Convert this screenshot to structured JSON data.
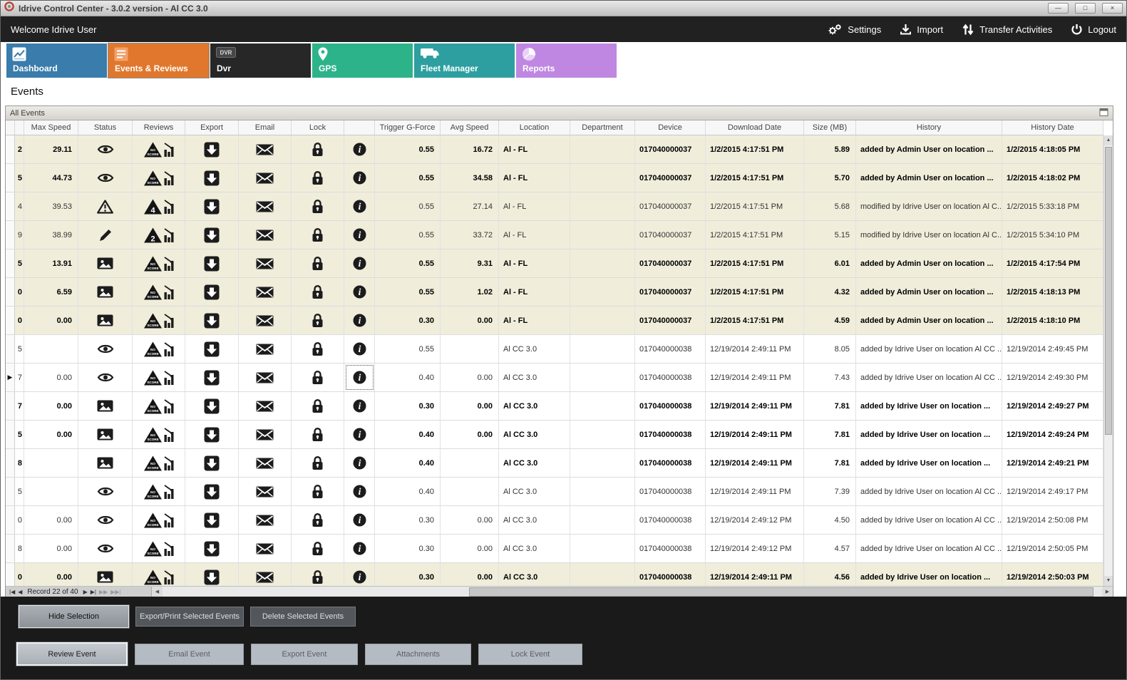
{
  "window": {
    "title": "Idrive Control Center - 3.0.2 version - Al CC 3.0",
    "controls": {
      "minimize": "—",
      "maximize": "□",
      "close": "×"
    }
  },
  "header": {
    "welcome": "Welcome Idrive User",
    "actions": [
      {
        "label": "Settings",
        "icon": "gears-icon"
      },
      {
        "label": "Import",
        "icon": "import-icon"
      },
      {
        "label": "Transfer Activities",
        "icon": "transfer-icon"
      },
      {
        "label": "Logout",
        "icon": "power-icon"
      }
    ]
  },
  "tabs": [
    {
      "label": "Dashboard",
      "icon": "line-chart-icon",
      "color": "#3a7cab",
      "active": false
    },
    {
      "label": "Events & Reviews",
      "icon": "event-list-icon",
      "color": "#e0772c",
      "active": true
    },
    {
      "label": "Dvr",
      "icon": "dvr-icon",
      "color": "#272727",
      "active": false
    },
    {
      "label": "GPS",
      "icon": "map-pin-icon",
      "color": "#2db389",
      "active": false
    },
    {
      "label": "Fleet Manager",
      "icon": "vehicle-icon",
      "color": "#2d9fa0",
      "active": false
    },
    {
      "label": "Reports",
      "icon": "pie-chart-icon",
      "color": "#bf87e2",
      "active": false
    }
  ],
  "page": {
    "title": "Events",
    "panel_title": "All Events"
  },
  "icons": {
    "status_eye": "eye-icon",
    "status_warning": "warning-icon",
    "status_edit": "pencil-icon",
    "status_image": "image-icon",
    "review_no_score": "no-score-triangle-icon",
    "review_chart": "score-chart-icon",
    "export": "export-icon",
    "email": "email-icon",
    "lock": "lock-icon",
    "info": "info-icon"
  },
  "table": {
    "columns": [
      "",
      "",
      "Max Speed",
      "Status",
      "Reviews",
      "Export",
      "Email",
      "Lock",
      "",
      "Trigger G-Force",
      "Avg Speed",
      "Location",
      "Department",
      "Device",
      "Download Date",
      "Size (MB)",
      "History",
      "History Date"
    ],
    "rows": [
      {
        "edge": "2",
        "max_speed": "29.11",
        "status": "eye",
        "review": "noscore",
        "trigger_g_force": "0.55",
        "avg_speed": "16.72",
        "location": "Al - FL",
        "department": "",
        "device": "017040000037",
        "download_date": "1/2/2015 4:17:51 PM",
        "size_mb": "5.89",
        "history": "added by Admin User on location ...",
        "history_date": "1/2/2015 4:18:05 PM",
        "bold": true,
        "beige": true,
        "current": false
      },
      {
        "edge": "5",
        "max_speed": "44.73",
        "status": "eye",
        "review": "noscore",
        "trigger_g_force": "0.55",
        "avg_speed": "34.58",
        "location": "Al - FL",
        "department": "",
        "device": "017040000037",
        "download_date": "1/2/2015 4:17:51 PM",
        "size_mb": "5.70",
        "history": "added by Admin User on location ...",
        "history_date": "1/2/2015 4:18:02 PM",
        "bold": true,
        "beige": true,
        "current": false
      },
      {
        "edge": "4",
        "max_speed": "39.53",
        "status": "warning",
        "review": "4",
        "trigger_g_force": "0.55",
        "avg_speed": "27.14",
        "location": "Al - FL",
        "department": "",
        "device": "017040000037",
        "download_date": "1/2/2015 4:17:51 PM",
        "size_mb": "5.68",
        "history": "modified by Idrive User on location Al C...",
        "history_date": "1/2/2015 5:33:18 PM",
        "bold": false,
        "beige": true,
        "current": false
      },
      {
        "edge": "9",
        "max_speed": "38.99",
        "status": "pencil",
        "review": "2",
        "trigger_g_force": "0.55",
        "avg_speed": "33.72",
        "location": "Al - FL",
        "department": "",
        "device": "017040000037",
        "download_date": "1/2/2015 4:17:51 PM",
        "size_mb": "5.15",
        "history": "modified by Idrive User on location Al C...",
        "history_date": "1/2/2015 5:34:10 PM",
        "bold": false,
        "beige": true,
        "current": false
      },
      {
        "edge": "5",
        "max_speed": "13.91",
        "status": "image",
        "review": "noscore",
        "trigger_g_force": "0.55",
        "avg_speed": "9.31",
        "location": "Al - FL",
        "department": "",
        "device": "017040000037",
        "download_date": "1/2/2015 4:17:51 PM",
        "size_mb": "6.01",
        "history": "added by Admin User on location ...",
        "history_date": "1/2/2015 4:17:54 PM",
        "bold": true,
        "beige": true,
        "current": false
      },
      {
        "edge": "0",
        "max_speed": "6.59",
        "status": "image",
        "review": "noscore",
        "trigger_g_force": "0.55",
        "avg_speed": "1.02",
        "location": "Al - FL",
        "department": "",
        "device": "017040000037",
        "download_date": "1/2/2015 4:17:51 PM",
        "size_mb": "4.32",
        "history": "added by Admin User on location ...",
        "history_date": "1/2/2015 4:18:13 PM",
        "bold": true,
        "beige": true,
        "current": false
      },
      {
        "edge": "0",
        "max_speed": "0.00",
        "status": "image",
        "review": "noscore",
        "trigger_g_force": "0.30",
        "avg_speed": "0.00",
        "location": "Al - FL",
        "department": "",
        "device": "017040000037",
        "download_date": "1/2/2015 4:17:51 PM",
        "size_mb": "4.59",
        "history": "added by Admin User on location ...",
        "history_date": "1/2/2015 4:18:10 PM",
        "bold": true,
        "beige": true,
        "current": false
      },
      {
        "edge": "5",
        "max_speed": "",
        "status": "eye",
        "review": "noscore",
        "trigger_g_force": "0.55",
        "avg_speed": "",
        "location": "Al CC 3.0",
        "department": "",
        "device": "017040000038",
        "download_date": "12/19/2014 2:49:11 PM",
        "size_mb": "8.05",
        "history": "added by Idrive User on location Al CC ...",
        "history_date": "12/19/2014 2:49:45 PM",
        "bold": false,
        "beige": false,
        "current": false
      },
      {
        "edge": "7",
        "max_speed": "0.00",
        "status": "eye",
        "review": "noscore",
        "trigger_g_force": "0.40",
        "avg_speed": "0.00",
        "location": "Al CC 3.0",
        "department": "",
        "device": "017040000038",
        "download_date": "12/19/2014 2:49:11 PM",
        "size_mb": "7.43",
        "history": "added by Idrive User on location Al CC ...",
        "history_date": "12/19/2014 2:49:30 PM",
        "bold": false,
        "beige": false,
        "current": true
      },
      {
        "edge": "7",
        "max_speed": "0.00",
        "status": "image",
        "review": "noscore",
        "trigger_g_force": "0.30",
        "avg_speed": "0.00",
        "location": "Al CC 3.0",
        "department": "",
        "device": "017040000038",
        "download_date": "12/19/2014 2:49:11 PM",
        "size_mb": "7.81",
        "history": "added by Idrive User on location ...",
        "history_date": "12/19/2014 2:49:27 PM",
        "bold": true,
        "beige": false,
        "current": false
      },
      {
        "edge": "5",
        "max_speed": "0.00",
        "status": "image",
        "review": "noscore",
        "trigger_g_force": "0.40",
        "avg_speed": "0.00",
        "location": "Al CC 3.0",
        "department": "",
        "device": "017040000038",
        "download_date": "12/19/2014 2:49:11 PM",
        "size_mb": "7.81",
        "history": "added by Idrive User on location ...",
        "history_date": "12/19/2014 2:49:24 PM",
        "bold": true,
        "beige": false,
        "current": false
      },
      {
        "edge": "8",
        "max_speed": "",
        "status": "image",
        "review": "noscore",
        "trigger_g_force": "0.40",
        "avg_speed": "",
        "location": "Al CC 3.0",
        "department": "",
        "device": "017040000038",
        "download_date": "12/19/2014 2:49:11 PM",
        "size_mb": "7.81",
        "history": "added by Idrive User on location ...",
        "history_date": "12/19/2014 2:49:21 PM",
        "bold": true,
        "beige": false,
        "current": false
      },
      {
        "edge": "5",
        "max_speed": "",
        "status": "eye",
        "review": "noscore",
        "trigger_g_force": "0.40",
        "avg_speed": "",
        "location": "Al CC 3.0",
        "department": "",
        "device": "017040000038",
        "download_date": "12/19/2014 2:49:11 PM",
        "size_mb": "7.39",
        "history": "added by Idrive User on location Al CC ...",
        "history_date": "12/19/2014 2:49:17 PM",
        "bold": false,
        "beige": false,
        "current": false
      },
      {
        "edge": "0",
        "max_speed": "0.00",
        "status": "eye",
        "review": "noscore",
        "trigger_g_force": "0.30",
        "avg_speed": "0.00",
        "location": "Al CC 3.0",
        "department": "",
        "device": "017040000038",
        "download_date": "12/19/2014 2:49:12 PM",
        "size_mb": "4.50",
        "history": "added by Idrive User on location Al CC ...",
        "history_date": "12/19/2014 2:50:08 PM",
        "bold": false,
        "beige": false,
        "current": false
      },
      {
        "edge": "8",
        "max_speed": "0.00",
        "status": "eye",
        "review": "noscore",
        "trigger_g_force": "0.30",
        "avg_speed": "0.00",
        "location": "Al CC 3.0",
        "department": "",
        "device": "017040000038",
        "download_date": "12/19/2014 2:49:12 PM",
        "size_mb": "4.57",
        "history": "added by Idrive User on location Al CC ...",
        "history_date": "12/19/2014 2:50:05 PM",
        "bold": false,
        "beige": false,
        "current": false
      },
      {
        "edge": "0",
        "max_speed": "0.00",
        "status": "image",
        "review": "noscore",
        "trigger_g_force": "0.30",
        "avg_speed": "0.00",
        "location": "Al CC 3.0",
        "department": "",
        "device": "017040000038",
        "download_date": "12/19/2014 2:49:11 PM",
        "size_mb": "4.56",
        "history": "added by Idrive User on location ...",
        "history_date": "12/19/2014 2:50:03 PM",
        "bold": true,
        "beige": true,
        "current": false
      }
    ]
  },
  "navigator": {
    "record_label": "Record 22 of 40"
  },
  "action_buttons": {
    "selection_row": [
      "Hide Selection",
      "Export/Print Selected Events",
      "Delete Selected  Events"
    ],
    "event_row": [
      "Review Event",
      "Email Event",
      "Export Event",
      "Attachments",
      "Lock Event"
    ]
  },
  "colors": {
    "accent_orange": "#e0772c",
    "row_highlight": "#f0eddb",
    "panel_dark": "#1a1a1a"
  }
}
